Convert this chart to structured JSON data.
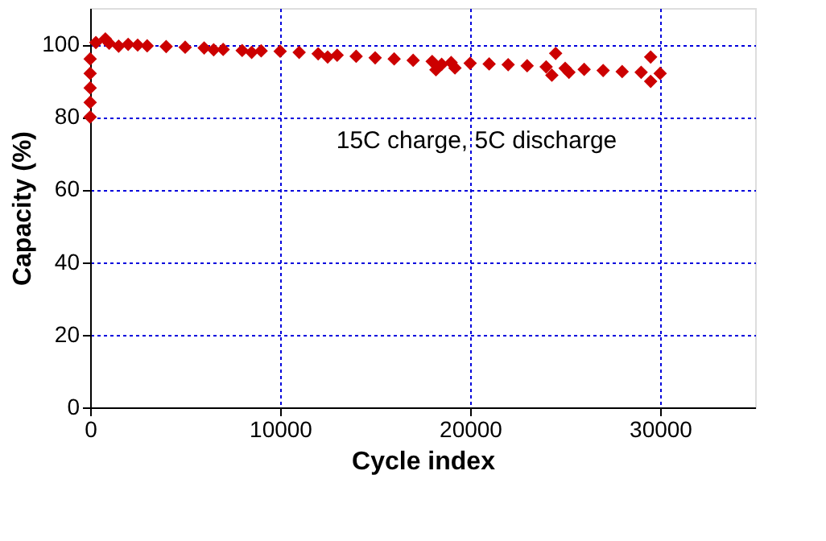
{
  "chart_data": {
    "type": "scatter",
    "xlabel": "Cycle index",
    "ylabel": "Capacity (%)",
    "annotations": [
      "15C charge, 5C discharge"
    ],
    "xlim": [
      0,
      35000
    ],
    "xticks": [
      0,
      10000,
      20000,
      30000
    ],
    "ylim": [
      0,
      110
    ],
    "yticks": [
      0,
      20,
      40,
      60,
      80,
      100
    ],
    "grid": true,
    "marker": "diamond",
    "series": [
      {
        "color": "#cc0000",
        "x": [
          0,
          0,
          0,
          0,
          0,
          300,
          800,
          1000,
          1500,
          2000,
          2500,
          3000,
          4000,
          5000,
          6000,
          6500,
          7000,
          8000,
          8500,
          9000,
          10000,
          11000,
          12000,
          12500,
          13000,
          14000,
          15000,
          16000,
          17000,
          18000,
          18200,
          18500,
          19000,
          19200,
          20000,
          21000,
          22000,
          23000,
          24000,
          24300,
          24500,
          25000,
          25200,
          26000,
          27000,
          28000,
          29000,
          29500,
          29500,
          30000
        ],
        "values": [
          80,
          84,
          88,
          92,
          96,
          100.5,
          101.5,
          100.3,
          99.5,
          100,
          99.8,
          99.6,
          99.4,
          99.2,
          99.0,
          98.5,
          98.6,
          98.3,
          97.8,
          98.2,
          98.1,
          97.8,
          97.4,
          96.5,
          97.0,
          96.7,
          96.3,
          96.0,
          95.6,
          95.3,
          93.0,
          94.5,
          95.0,
          93.5,
          94.8,
          94.6,
          94.4,
          94.1,
          93.8,
          91.5,
          97.5,
          93.4,
          92.3,
          93.1,
          92.8,
          92.5,
          92.3,
          96.5,
          89.8,
          92.0
        ]
      }
    ]
  }
}
